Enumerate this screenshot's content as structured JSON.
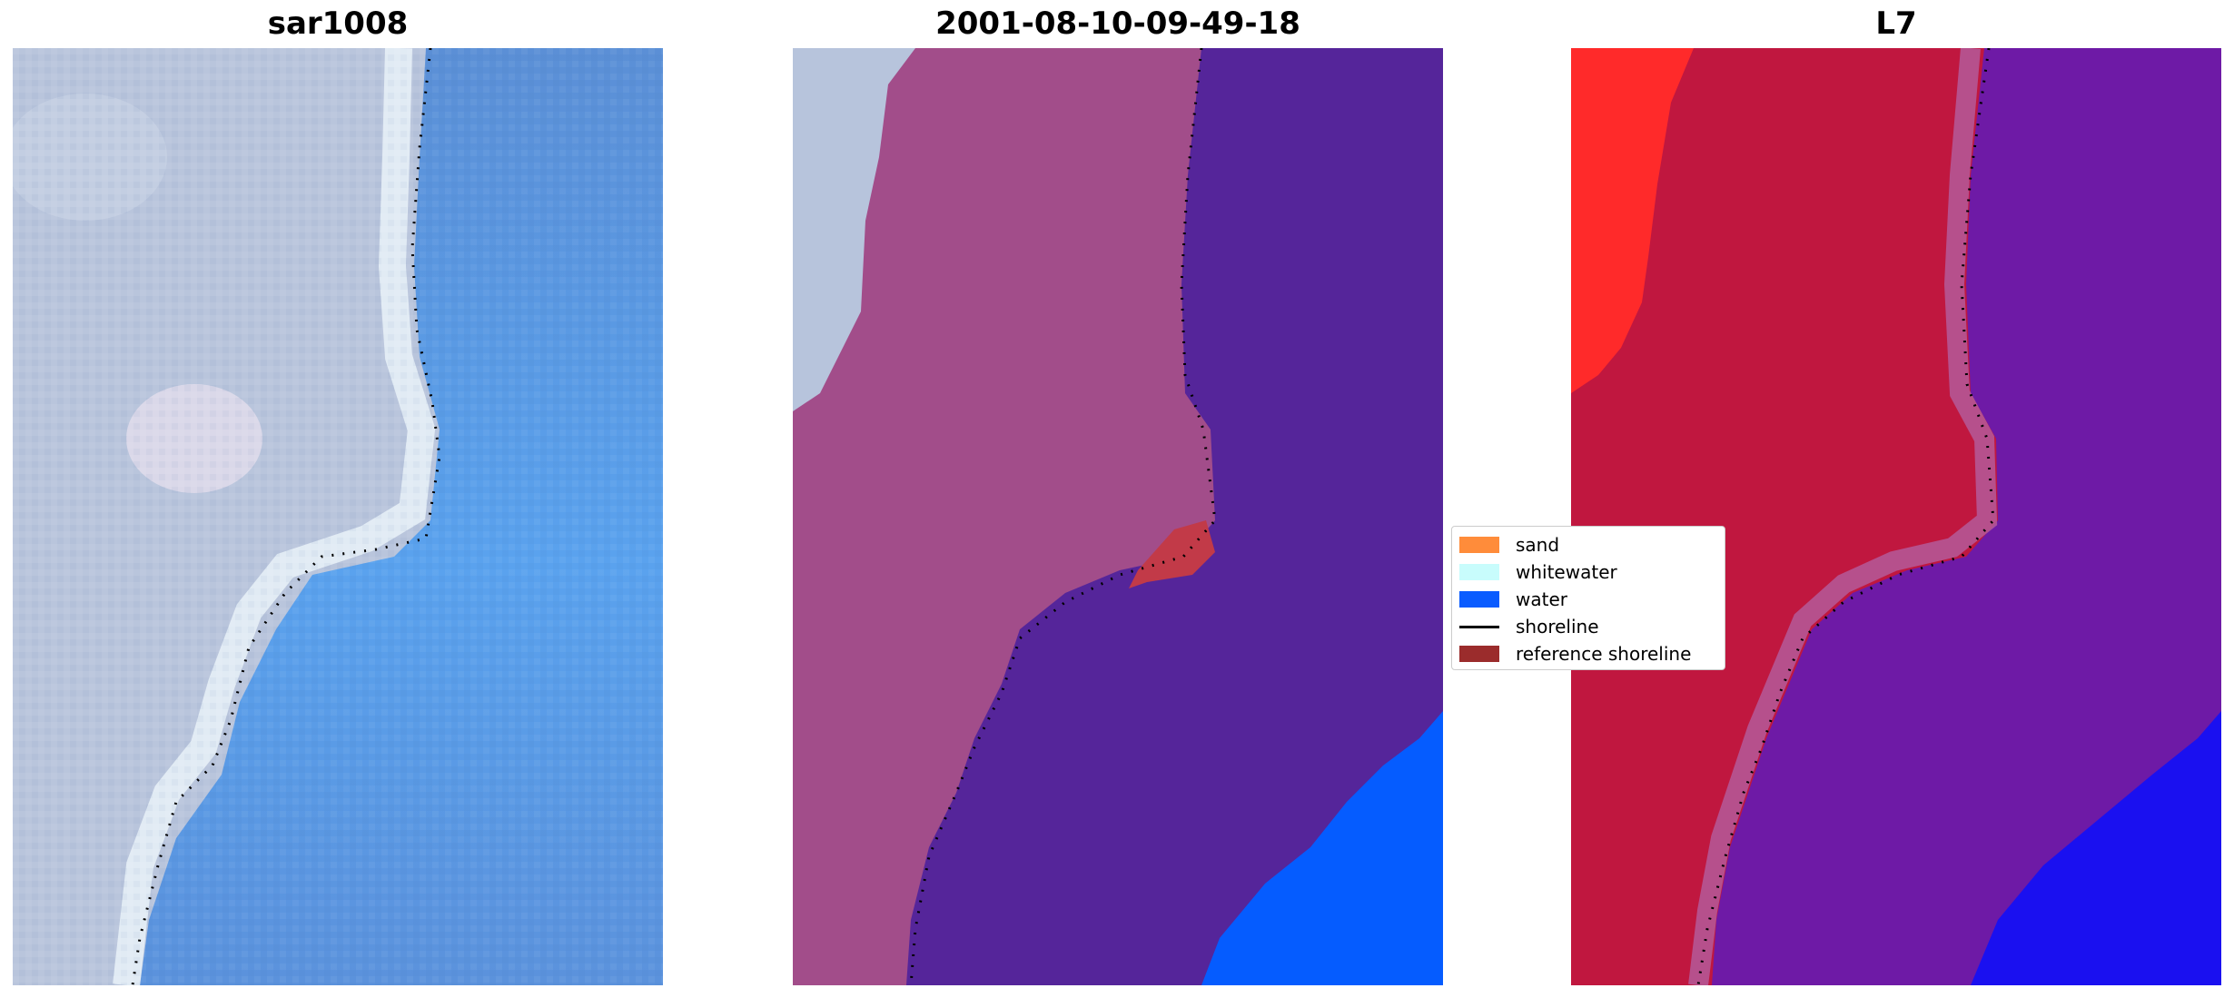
{
  "panels": [
    {
      "title": "sar1008"
    },
    {
      "title": "2001-08-10-09-49-18"
    },
    {
      "title": "L7"
    }
  ],
  "legend": {
    "items": [
      {
        "label": "sand",
        "color": "#ff8c3a"
      },
      {
        "label": "whitewater",
        "color": "#c8fcfc"
      },
      {
        "label": "water",
        "color": "#0a5cff"
      },
      {
        "label": "shoreline",
        "color": "#000000"
      },
      {
        "label": "reference shoreline",
        "color": "#9b2c2c"
      }
    ]
  },
  "colors": {
    "land_rgb": "#b7c4dc",
    "water_rgb": "#5aa0ec",
    "land_overlay": "#a24d8a",
    "water_overlay": "#55259a",
    "deep_water": "#055cff",
    "red_class": "#c0173f",
    "sand_red": "#ff2a2a",
    "blue_class": "#1a10f0"
  }
}
